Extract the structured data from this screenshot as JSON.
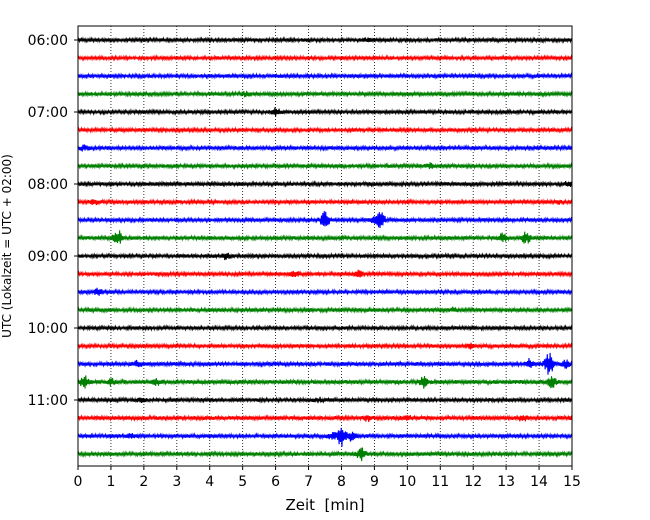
{
  "chart_data": {
    "type": "line",
    "title": "",
    "xlabel": "Zeit  [min]",
    "ylabel": "UTC (Lokalzeit = UTC + 02:00)",
    "xlim": [
      0,
      15
    ],
    "x_ticks": [
      0,
      1,
      2,
      3,
      4,
      5,
      6,
      7,
      8,
      9,
      10,
      11,
      12,
      13,
      14,
      15
    ],
    "y_tick_labels": [
      "06:00",
      "07:00",
      "08:00",
      "09:00",
      "10:00",
      "11:00"
    ],
    "grid": "vertical-dotted",
    "trace_interval_minutes": 15,
    "trace_colors": [
      "#000000",
      "#ff0000",
      "#0000ff",
      "#008000"
    ],
    "series": [
      {
        "start": "06:00",
        "color": "#000000",
        "noise": 0.35,
        "events": [
          [
            8.8,
            0.7
          ]
        ]
      },
      {
        "start": "06:15",
        "color": "#ff0000",
        "noise": 0.35,
        "events": []
      },
      {
        "start": "06:30",
        "color": "#0000ff",
        "noise": 0.4,
        "events": []
      },
      {
        "start": "06:45",
        "color": "#008000",
        "noise": 0.35,
        "events": [
          [
            5.1,
            0.8
          ]
        ]
      },
      {
        "start": "07:00",
        "color": "#000000",
        "noise": 0.35,
        "events": [
          [
            6.0,
            1.6
          ]
        ]
      },
      {
        "start": "07:15",
        "color": "#ff0000",
        "noise": 0.35,
        "events": []
      },
      {
        "start": "07:30",
        "color": "#0000ff",
        "noise": 0.4,
        "events": [
          [
            0.2,
            1.2
          ]
        ]
      },
      {
        "start": "07:45",
        "color": "#008000",
        "noise": 0.4,
        "events": [
          [
            10.7,
            0.9
          ]
        ]
      },
      {
        "start": "08:00",
        "color": "#000000",
        "noise": 0.4,
        "events": [
          [
            14.9,
            1.0
          ]
        ]
      },
      {
        "start": "08:15",
        "color": "#ff0000",
        "noise": 0.4,
        "events": [
          [
            0.5,
            0.8
          ],
          [
            14.6,
            0.8
          ]
        ]
      },
      {
        "start": "08:30",
        "color": "#0000ff",
        "noise": 0.35,
        "events": [
          [
            7.5,
            4.0
          ],
          [
            9.2,
            3.0
          ],
          [
            9.0,
            1.5
          ]
        ]
      },
      {
        "start": "08:45",
        "color": "#008000",
        "noise": 0.4,
        "events": [
          [
            1.2,
            3.5
          ],
          [
            12.9,
            2.0
          ],
          [
            13.6,
            2.5
          ]
        ]
      },
      {
        "start": "09:00",
        "color": "#000000",
        "noise": 0.35,
        "events": [
          [
            4.5,
            1.2
          ]
        ]
      },
      {
        "start": "09:15",
        "color": "#ff0000",
        "noise": 0.35,
        "events": [
          [
            6.6,
            1.5
          ],
          [
            8.5,
            1.2
          ]
        ]
      },
      {
        "start": "09:30",
        "color": "#0000ff",
        "noise": 0.35,
        "events": [
          [
            0.6,
            1.2
          ]
        ]
      },
      {
        "start": "09:45",
        "color": "#008000",
        "noise": 0.4,
        "events": [
          [
            11.4,
            0.8
          ]
        ]
      },
      {
        "start": "10:00",
        "color": "#000000",
        "noise": 0.35,
        "events": []
      },
      {
        "start": "10:15",
        "color": "#ff0000",
        "noise": 0.35,
        "events": [
          [
            11.9,
            1.0
          ]
        ]
      },
      {
        "start": "10:30",
        "color": "#0000ff",
        "noise": 0.45,
        "events": [
          [
            1.8,
            1.2
          ],
          [
            13.7,
            2.0
          ],
          [
            14.3,
            5.0
          ],
          [
            14.8,
            1.5
          ]
        ]
      },
      {
        "start": "10:45",
        "color": "#008000",
        "noise": 0.5,
        "events": [
          [
            0.2,
            2.5
          ],
          [
            1.0,
            1.2
          ],
          [
            2.4,
            1.2
          ],
          [
            10.5,
            2.8
          ],
          [
            14.4,
            2.2
          ]
        ]
      },
      {
        "start": "11:00",
        "color": "#000000",
        "noise": 0.4,
        "events": [
          [
            1.9,
            1.0
          ],
          [
            7.3,
            0.8
          ]
        ]
      },
      {
        "start": "11:15",
        "color": "#ff0000",
        "noise": 0.5,
        "events": [
          [
            8.8,
            1.2
          ],
          [
            10.0,
            1.0
          ],
          [
            13.5,
            1.2
          ]
        ]
      },
      {
        "start": "11:30",
        "color": "#0000ff",
        "noise": 0.4,
        "events": [
          [
            1.6,
            0.8
          ],
          [
            7.7,
            1.5
          ],
          [
            8.0,
            4.5
          ],
          [
            8.3,
            2.0
          ]
        ]
      },
      {
        "start": "11:45",
        "color": "#008000",
        "noise": 0.4,
        "events": [
          [
            8.6,
            3.0
          ]
        ]
      }
    ]
  }
}
